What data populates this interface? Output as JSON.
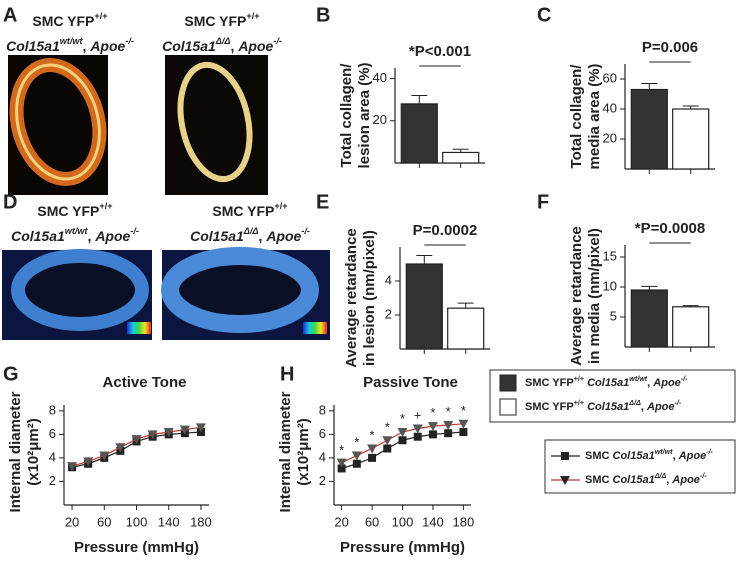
{
  "panel_labels": [
    "A",
    "B",
    "C",
    "D",
    "E",
    "F",
    "G",
    "H"
  ],
  "images": [
    {
      "title": [
        [
          {
            "t": "SMC YFP"
          },
          {
            "t": "+/+",
            "sup": true
          }
        ],
        [
          {
            "t": "Col15a1",
            "i": true
          },
          {
            "t": "wt/wt",
            "i": true,
            "sup": true
          },
          {
            "t": ", "
          },
          {
            "t": "Apoe",
            "i": true
          },
          {
            "t": "-/-",
            "i": true,
            "sup": true
          }
        ]
      ]
    },
    {
      "title": [
        [
          {
            "t": "SMC YFP"
          },
          {
            "t": "+/+",
            "sup": true
          }
        ],
        [
          {
            "t": "Col15a1",
            "i": true
          },
          {
            "t": "Δ/Δ",
            "i": true,
            "sup": true
          },
          {
            "t": ", "
          },
          {
            "t": "Apoe",
            "i": true
          },
          {
            "t": "-/-",
            "i": true,
            "sup": true
          }
        ]
      ]
    },
    {
      "title": [
        [
          {
            "t": "SMC YFP"
          },
          {
            "t": "+/+",
            "sup": true
          }
        ],
        [
          {
            "t": "Col15a1",
            "i": true
          },
          {
            "t": "wt/wt",
            "i": true,
            "sup": true
          },
          {
            "t": ", "
          },
          {
            "t": "Apoe",
            "i": true
          },
          {
            "t": "-/-",
            "i": true,
            "sup": true
          }
        ]
      ]
    },
    {
      "title": [
        [
          {
            "t": "SMC YFP"
          },
          {
            "t": "+/+",
            "sup": true
          }
        ],
        [
          {
            "t": "Col15a1",
            "i": true
          },
          {
            "t": "Δ/Δ",
            "i": true,
            "sup": true
          },
          {
            "t": ", "
          },
          {
            "t": "Apoe",
            "i": true
          },
          {
            "t": "-/-",
            "i": true,
            "sup": true
          }
        ]
      ]
    }
  ],
  "legends": {
    "bars": [
      {
        "color": "#333333",
        "label": [
          {
            "t": "SMC YFP"
          },
          {
            "t": "+/+",
            "sup": true
          },
          {
            "t": " "
          },
          {
            "t": "Col15a1",
            "i": true
          },
          {
            "t": "wt/wt",
            "i": true,
            "sup": true
          },
          {
            "t": ", "
          },
          {
            "t": "Apoe",
            "i": true
          },
          {
            "t": "-/-",
            "i": true,
            "sup": true
          }
        ]
      },
      {
        "color": "#ffffff",
        "label": [
          {
            "t": "SMC YFP"
          },
          {
            "t": "+/+",
            "sup": true
          },
          {
            "t": " "
          },
          {
            "t": "Col15a1",
            "i": true
          },
          {
            "t": "Δ/Δ",
            "i": true,
            "sup": true
          },
          {
            "t": ", "
          },
          {
            "t": "Apoe",
            "i": true
          },
          {
            "t": "-/-",
            "i": true,
            "sup": true
          }
        ]
      }
    ],
    "lines": [
      {
        "color": "#222222",
        "marker": "square",
        "label": [
          {
            "t": "SMC "
          },
          {
            "t": "Col15a1",
            "i": true
          },
          {
            "t": "wt/wt",
            "i": true,
            "sup": true
          },
          {
            "t": ", "
          },
          {
            "t": "Apoe",
            "i": true
          },
          {
            "t": "-/-",
            "i": true,
            "sup": true
          }
        ]
      },
      {
        "color": "#c0392b",
        "marker": "triangle",
        "label": [
          {
            "t": "SMC "
          },
          {
            "t": "Col15a1",
            "i": true
          },
          {
            "t": "Δ/Δ",
            "i": true,
            "sup": true
          },
          {
            "t": ", "
          },
          {
            "t": "Apoe",
            "i": true
          },
          {
            "t": "-/-",
            "i": true,
            "sup": true
          }
        ]
      }
    ]
  },
  "chart_data": [
    {
      "type": "bar",
      "ylabel": [
        "Total collagen/",
        "lesion area (%)"
      ],
      "values": [
        28,
        5
      ],
      "errors": [
        4,
        1.5
      ],
      "colors": [
        "#333333",
        "#ffffff"
      ],
      "ylim": [
        0,
        45
      ],
      "yticks": [
        20,
        40
      ],
      "annotation": "*P<0.001"
    },
    {
      "type": "bar",
      "ylabel": [
        "Total collagen/",
        "media area (%)"
      ],
      "values": [
        53,
        40
      ],
      "errors": [
        4,
        2
      ],
      "colors": [
        "#333333",
        "#ffffff"
      ],
      "ylim": [
        0,
        70
      ],
      "yticks": [
        20,
        40,
        60
      ],
      "annotation": "P=0.006"
    },
    {
      "type": "bar",
      "ylabel": [
        "Average retardance",
        "in lesion (nm/pixel)"
      ],
      "values": [
        5.0,
        2.4
      ],
      "errors": [
        0.5,
        0.3
      ],
      "colors": [
        "#333333",
        "#ffffff"
      ],
      "ylim": [
        0,
        6
      ],
      "yticks": [
        2,
        4
      ],
      "annotation": "P=0.0002"
    },
    {
      "type": "bar",
      "ylabel": [
        "Average retardance",
        "in media (nm/pixel)"
      ],
      "values": [
        9.5,
        6.7
      ],
      "errors": [
        0.6,
        0.2
      ],
      "colors": [
        "#333333",
        "#ffffff"
      ],
      "ylim": [
        0,
        17
      ],
      "yticks": [
        5,
        10,
        15
      ],
      "annotation": "*P=0.0008"
    },
    {
      "type": "line",
      "title": "Active Tone",
      "xlabel": "Pressure (mmHg)",
      "ylabel": [
        "Internal diameter",
        "(x10²μm²)"
      ],
      "x": [
        20,
        40,
        60,
        80,
        100,
        120,
        140,
        160,
        180
      ],
      "series": [
        {
          "color": "#222222",
          "marker": "square",
          "values": [
            3.2,
            3.5,
            4.0,
            4.6,
            5.4,
            5.8,
            6.0,
            6.1,
            6.2
          ],
          "errors": [
            0.15,
            0.2,
            0.2,
            0.2,
            0.2,
            0.2,
            0.2,
            0.2,
            0.2
          ]
        },
        {
          "color": "#c0392b",
          "marker": "triangle",
          "values": [
            3.3,
            3.7,
            4.2,
            4.9,
            5.6,
            6.0,
            6.2,
            6.4,
            6.6
          ],
          "errors": [
            0.15,
            0.2,
            0.2,
            0.2,
            0.2,
            0.2,
            0.2,
            0.2,
            0.2
          ]
        }
      ],
      "xlim": [
        10,
        190
      ],
      "ylim": [
        0.5,
        8.5
      ],
      "xticks": [
        20,
        60,
        100,
        140,
        180
      ],
      "yticks": [
        2,
        4,
        6,
        8
      ]
    },
    {
      "type": "line",
      "title": "Passive Tone",
      "xlabel": "Pressure (mmHg)",
      "ylabel": [
        "Internal diameter",
        "(x10²μm²)"
      ],
      "x": [
        20,
        40,
        60,
        80,
        100,
        120,
        140,
        160,
        180
      ],
      "series": [
        {
          "color": "#222222",
          "marker": "square",
          "values": [
            3.1,
            3.5,
            4.0,
            4.8,
            5.5,
            5.8,
            6.0,
            6.1,
            6.2
          ],
          "errors": [
            0.15,
            0.2,
            0.2,
            0.2,
            0.2,
            0.2,
            0.2,
            0.2,
            0.2
          ]
        },
        {
          "color": "#c0392b",
          "marker": "triangle",
          "values": [
            3.6,
            4.2,
            4.8,
            5.5,
            6.2,
            6.5,
            6.7,
            6.8,
            6.9
          ],
          "errors": [
            0.15,
            0.2,
            0.2,
            0.2,
            0.2,
            0.2,
            0.2,
            0.2,
            0.2
          ]
        }
      ],
      "annotations": {
        "x": [
          20,
          40,
          60,
          80,
          100,
          120,
          140,
          160,
          180
        ],
        "labels": [
          "*",
          "*",
          "*",
          "*",
          "*",
          "+",
          "*",
          "*",
          "*"
        ]
      },
      "xlim": [
        10,
        190
      ],
      "ylim": [
        0.5,
        8.5
      ],
      "xticks": [
        20,
        60,
        100,
        140,
        180
      ],
      "yticks": [
        2,
        4,
        6,
        8
      ]
    }
  ]
}
